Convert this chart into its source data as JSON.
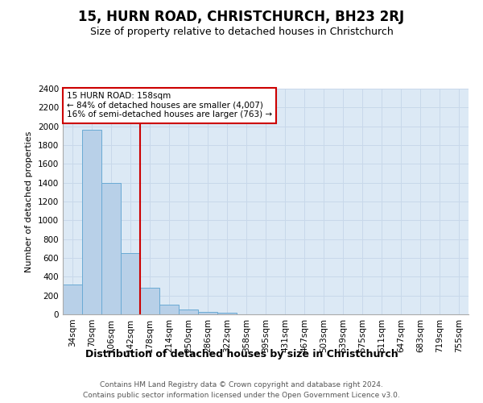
{
  "title": "15, HURN ROAD, CHRISTCHURCH, BH23 2RJ",
  "subtitle": "Size of property relative to detached houses in Christchurch",
  "xlabel": "Distribution of detached houses by size in Christchurch",
  "ylabel": "Number of detached properties",
  "footer_line1": "Contains HM Land Registry data © Crown copyright and database right 2024.",
  "footer_line2": "Contains public sector information licensed under the Open Government Licence v3.0.",
  "categories": [
    "34sqm",
    "70sqm",
    "106sqm",
    "142sqm",
    "178sqm",
    "214sqm",
    "250sqm",
    "286sqm",
    "322sqm",
    "358sqm",
    "395sqm",
    "431sqm",
    "467sqm",
    "503sqm",
    "539sqm",
    "575sqm",
    "611sqm",
    "647sqm",
    "683sqm",
    "719sqm",
    "755sqm"
  ],
  "bar_values": [
    320,
    1960,
    1400,
    650,
    280,
    100,
    50,
    30,
    20,
    0,
    0,
    0,
    0,
    0,
    0,
    0,
    0,
    0,
    0,
    0,
    0
  ],
  "bar_color": "#b8d0e8",
  "bar_edgecolor": "#6aaad4",
  "grid_color": "#c8d8ea",
  "background_color": "#dce9f5",
  "property_line_x": 3.5,
  "annotation_text_line1": "15 HURN ROAD: 158sqm",
  "annotation_text_line2": "← 84% of detached houses are smaller (4,007)",
  "annotation_text_line3": "16% of semi-detached houses are larger (763) →",
  "annotation_box_color": "white",
  "annotation_border_color": "#cc0000",
  "property_line_color": "#cc0000",
  "ylim": [
    0,
    2400
  ],
  "yticks": [
    0,
    200,
    400,
    600,
    800,
    1000,
    1200,
    1400,
    1600,
    1800,
    2000,
    2200,
    2400
  ],
  "title_fontsize": 12,
  "subtitle_fontsize": 9,
  "ylabel_fontsize": 8,
  "xlabel_fontsize": 9,
  "tick_fontsize": 7.5,
  "footer_fontsize": 6.5
}
